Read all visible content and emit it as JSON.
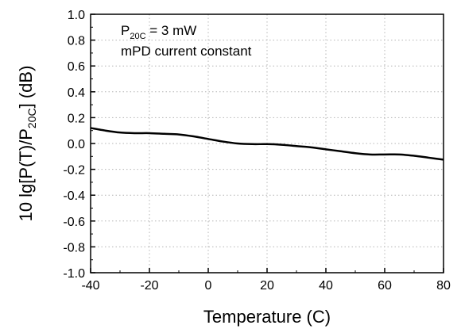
{
  "chart_data": {
    "type": "line",
    "xlabel": "Temperature (C)",
    "ylabel": {
      "prefix": "10 lg[P(T)/P",
      "sub": "20C",
      "suffix": "] (dB)"
    },
    "xlim": [
      -40,
      80
    ],
    "ylim": [
      -1.0,
      1.0
    ],
    "x_ticks": [
      -40,
      -20,
      0,
      20,
      40,
      60,
      80
    ],
    "x_tick_labels": [
      "-40",
      "-20",
      "0",
      "20",
      "40",
      "60",
      "80"
    ],
    "y_ticks": [
      -1.0,
      -0.8,
      -0.6,
      -0.4,
      -0.2,
      0.0,
      0.2,
      0.4,
      0.6,
      0.8,
      1.0
    ],
    "y_tick_labels": [
      "-1.0",
      "-0.8",
      "-0.6",
      "-0.4",
      "-0.2",
      "0.0",
      "0.2",
      "0.4",
      "0.6",
      "0.8",
      "1.0"
    ],
    "grid": true,
    "series": [
      {
        "color": "#000000",
        "x": [
          -40,
          -35,
          -30,
          -25,
          -20,
          -15,
          -10,
          -5,
          0,
          5,
          10,
          15,
          20,
          25,
          30,
          35,
          40,
          45,
          50,
          55,
          60,
          65,
          70,
          75,
          80
        ],
        "y": [
          0.12,
          0.1,
          0.085,
          0.08,
          0.08,
          0.075,
          0.07,
          0.055,
          0.035,
          0.015,
          0.0,
          -0.005,
          -0.005,
          -0.01,
          -0.02,
          -0.03,
          -0.045,
          -0.06,
          -0.075,
          -0.085,
          -0.085,
          -0.085,
          -0.095,
          -0.11,
          -0.125
        ]
      }
    ],
    "annotations": [
      {
        "prefix": "P",
        "sub": "20C",
        "suffix": " = 3 mW"
      },
      {
        "text": "mPD current constant"
      }
    ]
  }
}
